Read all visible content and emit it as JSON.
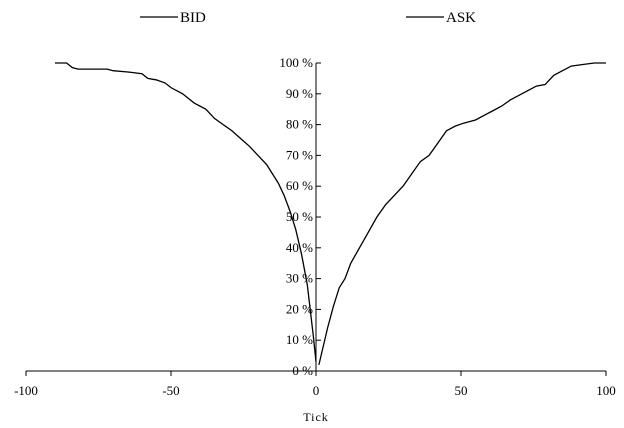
{
  "chart_data": {
    "type": "line",
    "title": "",
    "xlabel": "Tick",
    "ylabel": "",
    "xlim": [
      -100,
      100
    ],
    "ylim": [
      0,
      100
    ],
    "x_ticks": [
      -100,
      -50,
      0,
      50,
      100
    ],
    "x_tick_labels": [
      "-100",
      "-50",
      "0",
      "50",
      "100"
    ],
    "y_ticks": [
      0,
      10,
      20,
      30,
      40,
      50,
      60,
      70,
      80,
      90,
      100
    ],
    "y_tick_labels": [
      "0 %",
      "10 %",
      "20 %",
      "30 %",
      "40 %",
      "50 %",
      "60 %",
      "70 %",
      "80 %",
      "90 %",
      "100 %"
    ],
    "grid": false,
    "legend_position": "top",
    "series": [
      {
        "name": "BID",
        "color": "#000000",
        "points": [
          [
            -90,
            100
          ],
          [
            -86,
            100
          ],
          [
            -84,
            98.5
          ],
          [
            -82,
            98
          ],
          [
            -78,
            98
          ],
          [
            -72,
            98
          ],
          [
            -70,
            97.5
          ],
          [
            -64,
            97
          ],
          [
            -60,
            96.5
          ],
          [
            -58,
            95
          ],
          [
            -55,
            94.5
          ],
          [
            -52,
            93.5
          ],
          [
            -50,
            92
          ],
          [
            -46,
            90
          ],
          [
            -42,
            87
          ],
          [
            -38,
            85
          ],
          [
            -35,
            82
          ],
          [
            -32,
            80
          ],
          [
            -29,
            78
          ],
          [
            -26,
            75.5
          ],
          [
            -23,
            73
          ],
          [
            -20,
            70
          ],
          [
            -17,
            67
          ],
          [
            -15,
            64
          ],
          [
            -13,
            61
          ],
          [
            -11,
            57
          ],
          [
            -9,
            52
          ],
          [
            -7,
            46
          ],
          [
            -5,
            38
          ],
          [
            -3,
            28
          ],
          [
            -2,
            20
          ],
          [
            -1,
            12
          ],
          [
            0,
            3
          ]
        ]
      },
      {
        "name": "ASK",
        "color": "#000000",
        "points": [
          [
            1,
            2
          ],
          [
            2,
            6
          ],
          [
            4,
            14
          ],
          [
            6,
            21
          ],
          [
            8,
            27
          ],
          [
            10,
            30
          ],
          [
            12,
            35
          ],
          [
            15,
            40
          ],
          [
            18,
            45
          ],
          [
            21,
            50
          ],
          [
            24,
            54
          ],
          [
            27,
            57
          ],
          [
            30,
            60
          ],
          [
            33,
            64
          ],
          [
            36,
            68
          ],
          [
            39,
            70
          ],
          [
            42,
            74
          ],
          [
            45,
            78
          ],
          [
            48,
            79.5
          ],
          [
            51,
            80.5
          ],
          [
            55,
            81.5
          ],
          [
            58,
            83
          ],
          [
            61,
            84.5
          ],
          [
            64,
            86
          ],
          [
            67,
            88
          ],
          [
            70,
            89.5
          ],
          [
            73,
            91
          ],
          [
            76,
            92.5
          ],
          [
            79,
            93
          ],
          [
            82,
            96
          ],
          [
            85,
            97.5
          ],
          [
            88,
            99
          ],
          [
            92,
            99.5
          ],
          [
            96,
            100
          ],
          [
            100,
            100
          ]
        ]
      }
    ]
  }
}
